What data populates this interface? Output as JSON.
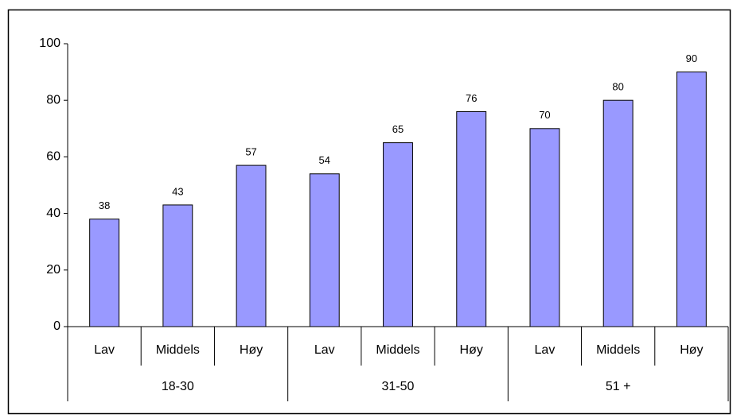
{
  "chart_data": {
    "type": "bar",
    "categories": [
      "Lav",
      "Middels",
      "Høy",
      "Lav",
      "Middels",
      "Høy",
      "Lav",
      "Middels",
      "Høy"
    ],
    "groups": [
      "18-30",
      "31-50",
      "51 +"
    ],
    "values": [
      38,
      43,
      57,
      54,
      65,
      76,
      70,
      80,
      90
    ],
    "color": "#9999ff",
    "ylim": [
      0,
      100
    ],
    "yticks": [
      0,
      20,
      40,
      60,
      80,
      100
    ],
    "grid": false
  }
}
